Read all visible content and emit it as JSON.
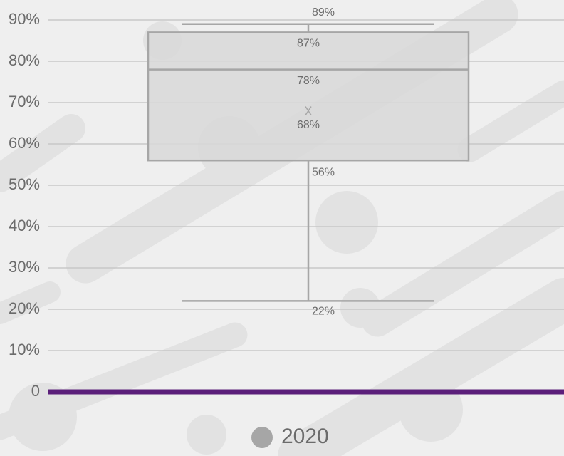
{
  "chart_data": {
    "type": "box",
    "series": [
      {
        "name": "2020",
        "color": "#a6a6a6",
        "min": 22,
        "q1": 56,
        "median": 78,
        "q3": 87,
        "max": 89,
        "mean": 68,
        "value_labels": {
          "min": "22%",
          "q1": "56%",
          "median": "78%",
          "q3": "87%",
          "max": "89%",
          "mean": "68%"
        }
      }
    ],
    "ylim": [
      0,
      90
    ],
    "yticks": [
      0,
      {
        "value": 10,
        "label": "10%"
      },
      {
        "value": 20,
        "label": "20%"
      },
      {
        "value": 30,
        "label": "30%"
      },
      {
        "value": 40,
        "label": "40%"
      },
      {
        "value": 50,
        "label": "50%"
      },
      {
        "value": 60,
        "label": "60%"
      },
      {
        "value": 70,
        "label": "70%"
      },
      {
        "value": 80,
        "label": "80%"
      },
      {
        "value": 90,
        "label": "90%"
      }
    ],
    "grid": true,
    "baseline_color": "#5b1f7a",
    "legend": "bottom"
  }
}
